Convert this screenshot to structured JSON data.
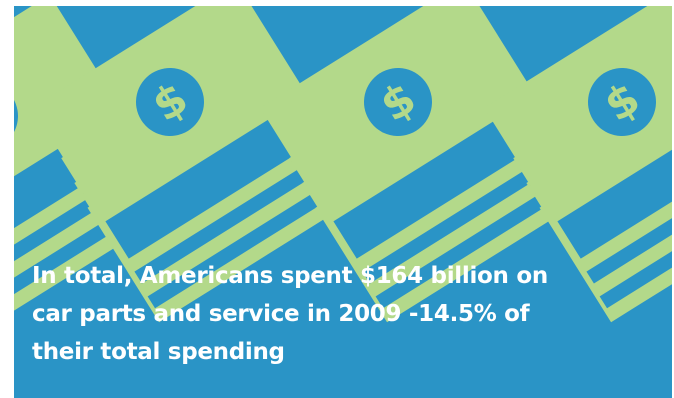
{
  "colors": {
    "background": "#2a94c6",
    "bill": "#b3d98a",
    "coin": "#2a94c6",
    "text": "#ffffff"
  },
  "illustration": {
    "icon": "money-stack-icon",
    "repeat": 4,
    "symbol": "$"
  },
  "caption": "In total, Americans spent $164  billion on\ncar parts and service in 2009 -14.5% of\ntheir total spending"
}
